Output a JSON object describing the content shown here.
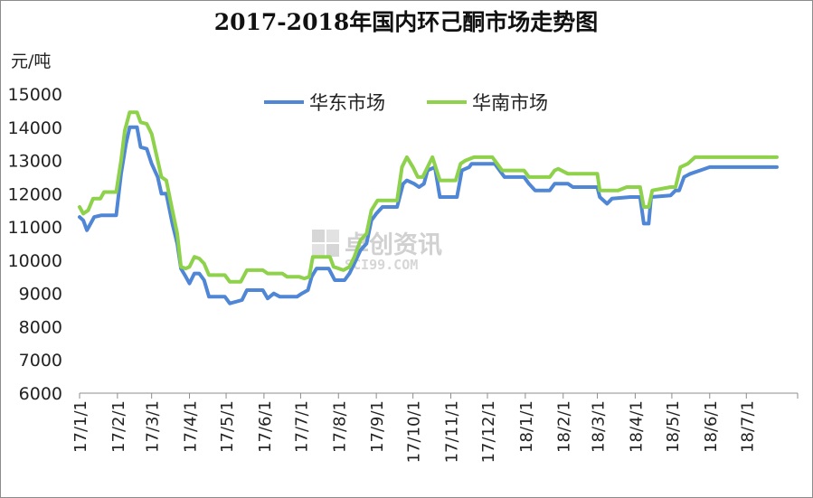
{
  "chart_data": {
    "type": "line",
    "title": "2017-2018年国内环己酮市场走势图",
    "ylabel": "元/吨",
    "xlabel": "",
    "ylim": [
      6000,
      15000
    ],
    "yticks": [
      6000,
      7000,
      8000,
      9000,
      10000,
      11000,
      12000,
      13000,
      14000,
      15000
    ],
    "xlim": [
      "2017-01-01",
      "2018-08-12"
    ],
    "x_tick_labels": [
      "17/1/1",
      "17/2/1",
      "17/3/1",
      "17/4/1",
      "17/5/1",
      "17/6/1",
      "17/7/1",
      "17/8/1",
      "17/9/1",
      "17/10/1",
      "17/11/1",
      "17/12/1",
      "18/1/1",
      "18/2/1",
      "18/3/1",
      "18/4/1",
      "18/5/1",
      "18/6/1",
      "18/7/1"
    ],
    "x_tick_dates": [
      "2017-01-01",
      "2017-02-01",
      "2017-03-01",
      "2017-04-01",
      "2017-05-01",
      "2017-06-01",
      "2017-07-01",
      "2017-08-01",
      "2017-09-01",
      "2017-10-01",
      "2017-11-01",
      "2017-12-01",
      "2018-01-01",
      "2018-02-01",
      "2018-03-01",
      "2018-04-01",
      "2018-05-01",
      "2018-06-01",
      "2018-07-01"
    ],
    "grid": false,
    "legend": "top",
    "series": [
      {
        "name": "华东市场",
        "color": "#4f86d6",
        "points": [
          [
            "2017-01-01",
            11300
          ],
          [
            "2017-01-04",
            11200
          ],
          [
            "2017-01-07",
            10900
          ],
          [
            "2017-01-10",
            11100
          ],
          [
            "2017-01-13",
            11300
          ],
          [
            "2017-01-19",
            11350
          ],
          [
            "2017-01-31",
            11350
          ],
          [
            "2017-02-04",
            12600
          ],
          [
            "2017-02-08",
            13500
          ],
          [
            "2017-02-11",
            14000
          ],
          [
            "2017-02-17",
            14000
          ],
          [
            "2017-02-20",
            13400
          ],
          [
            "2017-02-25",
            13350
          ],
          [
            "2017-03-01",
            12900
          ],
          [
            "2017-03-06",
            12500
          ],
          [
            "2017-03-09",
            12000
          ],
          [
            "2017-03-13",
            12000
          ],
          [
            "2017-03-18",
            11100
          ],
          [
            "2017-03-22",
            10500
          ],
          [
            "2017-03-25",
            9750
          ],
          [
            "2017-03-29",
            9500
          ],
          [
            "2017-04-01",
            9300
          ],
          [
            "2017-04-05",
            9600
          ],
          [
            "2017-04-09",
            9600
          ],
          [
            "2017-04-13",
            9400
          ],
          [
            "2017-04-17",
            8900
          ],
          [
            "2017-04-23",
            8900
          ],
          [
            "2017-04-30",
            8900
          ],
          [
            "2017-05-04",
            8700
          ],
          [
            "2017-05-14",
            8800
          ],
          [
            "2017-05-18",
            9100
          ],
          [
            "2017-05-31",
            9100
          ],
          [
            "2017-06-04",
            8850
          ],
          [
            "2017-06-09",
            9000
          ],
          [
            "2017-06-14",
            8900
          ],
          [
            "2017-06-28",
            8900
          ],
          [
            "2017-07-02",
            9000
          ],
          [
            "2017-07-07",
            9100
          ],
          [
            "2017-07-10",
            9500
          ],
          [
            "2017-07-14",
            9750
          ],
          [
            "2017-07-24",
            9750
          ],
          [
            "2017-07-29",
            9400
          ],
          [
            "2017-08-06",
            9400
          ],
          [
            "2017-08-10",
            9600
          ],
          [
            "2017-08-14",
            9900
          ],
          [
            "2017-08-19",
            10300
          ],
          [
            "2017-08-24",
            10500
          ],
          [
            "2017-08-28",
            11200
          ],
          [
            "2017-09-01",
            11400
          ],
          [
            "2017-09-06",
            11600
          ],
          [
            "2017-09-18",
            11600
          ],
          [
            "2017-09-23",
            12300
          ],
          [
            "2017-09-26",
            12400
          ],
          [
            "2017-10-02",
            12300
          ],
          [
            "2017-10-06",
            12200
          ],
          [
            "2017-10-10",
            12300
          ],
          [
            "2017-10-13",
            12700
          ],
          [
            "2017-10-19",
            12800
          ],
          [
            "2017-10-23",
            11900
          ],
          [
            "2017-11-06",
            11900
          ],
          [
            "2017-11-10",
            12700
          ],
          [
            "2017-11-16",
            12800
          ],
          [
            "2017-11-18",
            12900
          ],
          [
            "2017-11-30",
            12900
          ],
          [
            "2017-12-07",
            12900
          ],
          [
            "2017-12-11",
            12700
          ],
          [
            "2017-12-15",
            12500
          ],
          [
            "2017-12-31",
            12500
          ],
          [
            "2018-01-04",
            12300
          ],
          [
            "2018-01-09",
            12100
          ],
          [
            "2018-01-21",
            12100
          ],
          [
            "2018-01-25",
            12300
          ],
          [
            "2018-02-05",
            12300
          ],
          [
            "2018-02-09",
            12200
          ],
          [
            "2018-03-01",
            12200
          ],
          [
            "2018-03-03",
            11900
          ],
          [
            "2018-03-09",
            11700
          ],
          [
            "2018-03-13",
            11850
          ],
          [
            "2018-03-28",
            11900
          ],
          [
            "2018-04-05",
            11900
          ],
          [
            "2018-04-08",
            11100
          ],
          [
            "2018-04-12",
            11100
          ],
          [
            "2018-04-14",
            11900
          ],
          [
            "2018-04-30",
            11950
          ],
          [
            "2018-05-04",
            12100
          ],
          [
            "2018-05-07",
            12100
          ],
          [
            "2018-05-11",
            12500
          ],
          [
            "2018-05-16",
            12600
          ],
          [
            "2018-05-24",
            12700
          ],
          [
            "2018-06-01",
            12800
          ],
          [
            "2018-06-30",
            12800
          ],
          [
            "2018-07-26",
            12800
          ]
        ]
      },
      {
        "name": "华南市场",
        "color": "#8ed14a",
        "points": [
          [
            "2017-01-01",
            11600
          ],
          [
            "2017-01-04",
            11400
          ],
          [
            "2017-01-08",
            11500
          ],
          [
            "2017-01-12",
            11850
          ],
          [
            "2017-01-18",
            11850
          ],
          [
            "2017-01-21",
            12050
          ],
          [
            "2017-01-31",
            12050
          ],
          [
            "2017-02-04",
            13000
          ],
          [
            "2017-02-07",
            13900
          ],
          [
            "2017-02-11",
            14450
          ],
          [
            "2017-02-17",
            14450
          ],
          [
            "2017-02-20",
            14150
          ],
          [
            "2017-02-25",
            14100
          ],
          [
            "2017-03-01",
            13800
          ],
          [
            "2017-03-06",
            13000
          ],
          [
            "2017-03-09",
            12500
          ],
          [
            "2017-03-13",
            12400
          ],
          [
            "2017-03-18",
            11500
          ],
          [
            "2017-03-22",
            10800
          ],
          [
            "2017-03-25",
            9800
          ],
          [
            "2017-03-29",
            9750
          ],
          [
            "2017-04-01",
            9800
          ],
          [
            "2017-04-05",
            10100
          ],
          [
            "2017-04-09",
            10050
          ],
          [
            "2017-04-13",
            9900
          ],
          [
            "2017-04-17",
            9550
          ],
          [
            "2017-04-24",
            9550
          ],
          [
            "2017-04-30",
            9550
          ],
          [
            "2017-05-04",
            9350
          ],
          [
            "2017-05-13",
            9350
          ],
          [
            "2017-05-18",
            9700
          ],
          [
            "2017-05-31",
            9700
          ],
          [
            "2017-06-04",
            9600
          ],
          [
            "2017-06-16",
            9600
          ],
          [
            "2017-06-20",
            9500
          ],
          [
            "2017-06-30",
            9500
          ],
          [
            "2017-07-04",
            9450
          ],
          [
            "2017-07-08",
            9500
          ],
          [
            "2017-07-11",
            10100
          ],
          [
            "2017-07-25",
            10100
          ],
          [
            "2017-07-28",
            9800
          ],
          [
            "2017-08-05",
            9700
          ],
          [
            "2017-08-10",
            9800
          ],
          [
            "2017-08-14",
            10100
          ],
          [
            "2017-08-19",
            10600
          ],
          [
            "2017-08-24",
            10800
          ],
          [
            "2017-08-28",
            11500
          ],
          [
            "2017-09-02",
            11800
          ],
          [
            "2017-09-18",
            11800
          ],
          [
            "2017-09-22",
            12800
          ],
          [
            "2017-09-26",
            13100
          ],
          [
            "2017-10-01",
            12800
          ],
          [
            "2017-10-05",
            12500
          ],
          [
            "2017-10-09",
            12500
          ],
          [
            "2017-10-13",
            12800
          ],
          [
            "2017-10-17",
            13100
          ],
          [
            "2017-10-23",
            12400
          ],
          [
            "2017-11-05",
            12400
          ],
          [
            "2017-11-09",
            12900
          ],
          [
            "2017-11-13",
            13000
          ],
          [
            "2017-11-20",
            13100
          ],
          [
            "2017-12-05",
            13100
          ],
          [
            "2017-12-09",
            12900
          ],
          [
            "2017-12-13",
            12700
          ],
          [
            "2017-12-31",
            12700
          ],
          [
            "2018-01-04",
            12500
          ],
          [
            "2018-01-21",
            12500
          ],
          [
            "2018-01-25",
            12700
          ],
          [
            "2018-01-28",
            12750
          ],
          [
            "2018-02-05",
            12600
          ],
          [
            "2018-03-01",
            12600
          ],
          [
            "2018-03-03",
            12100
          ],
          [
            "2018-03-18",
            12100
          ],
          [
            "2018-03-25",
            12200
          ],
          [
            "2018-04-05",
            12200
          ],
          [
            "2018-04-08",
            11600
          ],
          [
            "2018-04-12",
            11600
          ],
          [
            "2018-04-15",
            12100
          ],
          [
            "2018-04-30",
            12200
          ],
          [
            "2018-05-04",
            12200
          ],
          [
            "2018-05-08",
            12800
          ],
          [
            "2018-05-14",
            12900
          ],
          [
            "2018-05-20",
            13100
          ],
          [
            "2018-06-30",
            13100
          ],
          [
            "2018-07-26",
            13100
          ]
        ]
      }
    ]
  },
  "watermark": {
    "name": "卓创资讯",
    "site": "SCI99.COM"
  }
}
